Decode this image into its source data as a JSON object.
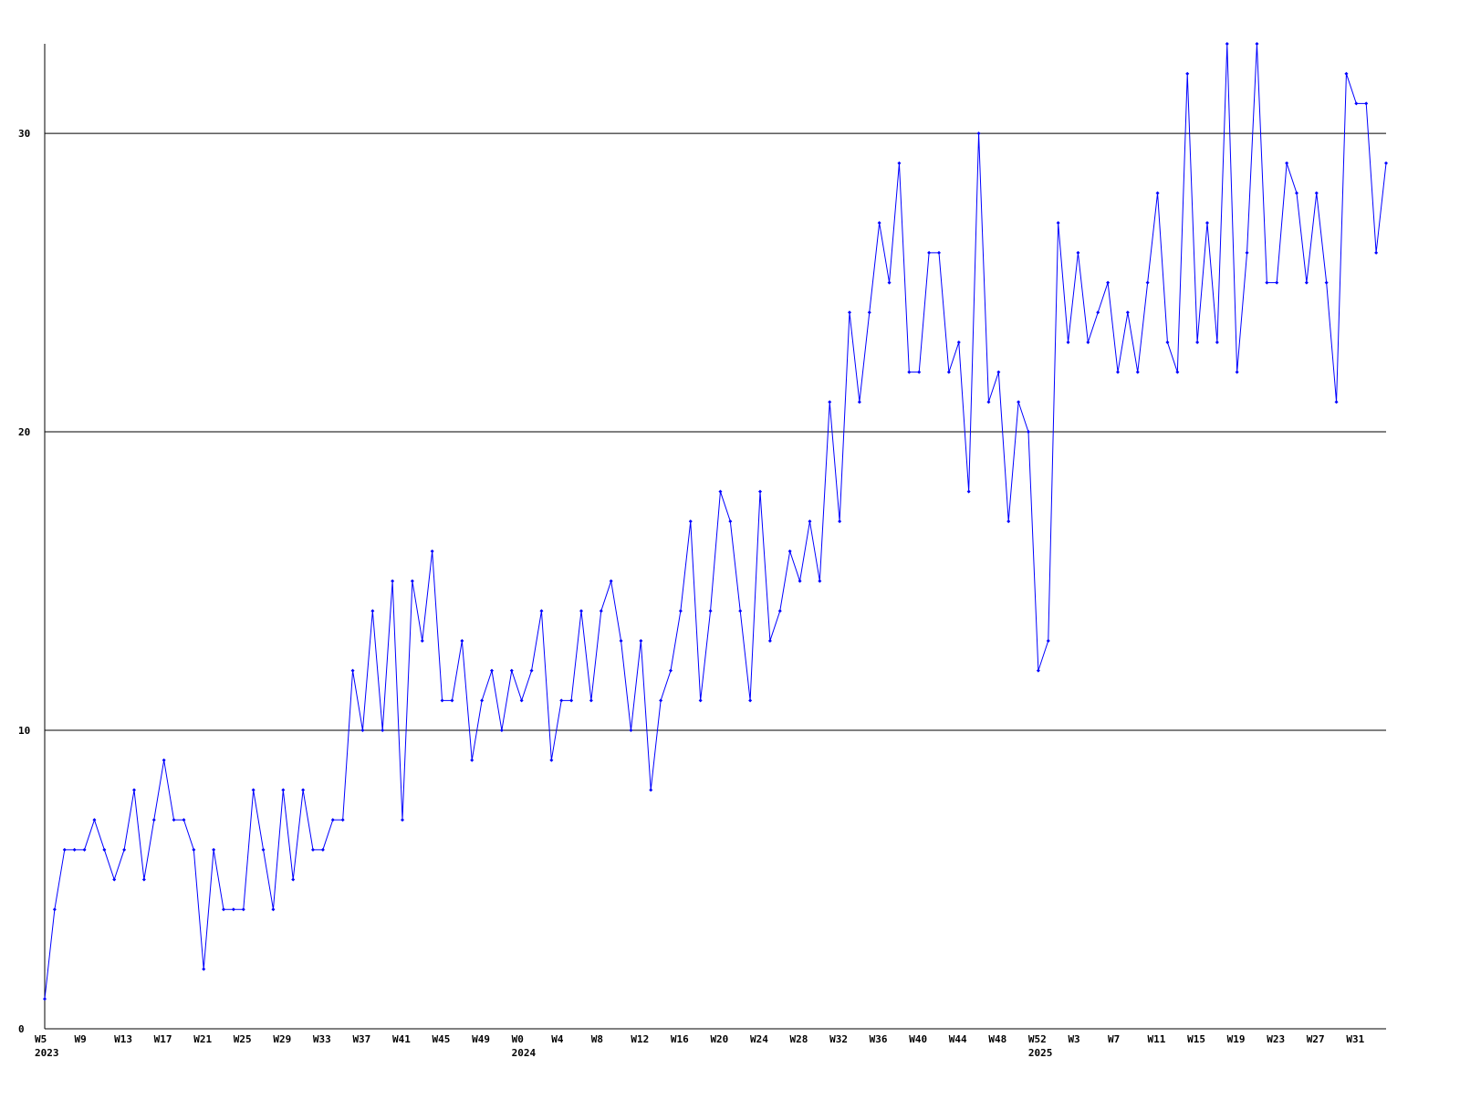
{
  "chart_data": {
    "type": "line",
    "categories": [
      "W5",
      null,
      null,
      null,
      "W9",
      null,
      null,
      null,
      "W13",
      null,
      null,
      null,
      "W17",
      null,
      null,
      null,
      "W21",
      null,
      null,
      null,
      "W25",
      null,
      null,
      null,
      "W29",
      null,
      null,
      null,
      "W33",
      null,
      null,
      null,
      "W37",
      null,
      null,
      null,
      "W41",
      null,
      null,
      null,
      "W45",
      null,
      null,
      null,
      "W49",
      null,
      null,
      null,
      "W0",
      null,
      null,
      null,
      "W4",
      null,
      null,
      null,
      "W8",
      null,
      null,
      null,
      "W12",
      null,
      null,
      null,
      "W16",
      null,
      null,
      null,
      "W20",
      null,
      null,
      null,
      "W24",
      null,
      null,
      null,
      "W28",
      null,
      null,
      null,
      "W32",
      null,
      null,
      null,
      "W36",
      null,
      null,
      null,
      "W40",
      null,
      null,
      null,
      "W44",
      null,
      null,
      null,
      "W48",
      null,
      null,
      null,
      "W52",
      null,
      null,
      null,
      "W3",
      null,
      null,
      null,
      "W7",
      null,
      null,
      null,
      "W11",
      null,
      null,
      null,
      "W15",
      null,
      null,
      null,
      "W19",
      null,
      null,
      null,
      "W23",
      null,
      null,
      null,
      "W27",
      null,
      null,
      null,
      "W31",
      null,
      null,
      null
    ],
    "category_years": [
      "2023",
      null,
      null,
      null,
      null,
      null,
      null,
      null,
      null,
      null,
      null,
      null,
      null,
      null,
      null,
      null,
      null,
      null,
      null,
      null,
      null,
      null,
      null,
      null,
      null,
      null,
      null,
      null,
      null,
      null,
      null,
      null,
      null,
      null,
      null,
      null,
      null,
      null,
      null,
      null,
      null,
      null,
      null,
      null,
      null,
      null,
      null,
      null,
      "2024",
      null,
      null,
      null,
      null,
      null,
      null,
      null,
      null,
      null,
      null,
      null,
      null,
      null,
      null,
      null,
      null,
      null,
      null,
      null,
      null,
      null,
      null,
      null,
      null,
      null,
      null,
      null,
      null,
      null,
      null,
      null,
      null,
      null,
      null,
      null,
      null,
      null,
      null,
      null,
      null,
      null,
      null,
      null,
      null,
      null,
      null,
      null,
      null,
      null,
      null,
      null,
      "2025",
      null,
      null,
      null,
      null,
      null,
      null,
      null,
      null,
      null,
      null,
      null,
      null,
      null,
      null,
      null,
      null,
      null,
      null,
      null,
      null,
      null,
      null,
      null,
      null,
      null,
      null,
      null,
      null,
      null,
      null,
      null,
      null,
      null,
      null,
      null
    ],
    "series": [
      {
        "color": "#0000ff",
        "values": [
          1,
          4,
          6,
          6,
          6,
          7,
          6,
          5,
          6,
          8,
          5,
          7,
          9,
          7,
          7,
          6,
          2,
          6,
          4,
          4,
          4,
          8,
          6,
          4,
          8,
          5,
          8,
          6,
          6,
          7,
          7,
          12,
          10,
          14,
          10,
          15,
          7,
          15,
          13,
          16,
          11,
          11,
          13,
          9,
          11,
          12,
          10,
          12,
          11,
          12,
          14,
          9,
          11,
          11,
          14,
          11,
          14,
          15,
          13,
          10,
          13,
          8,
          11,
          12,
          14,
          17,
          11,
          14,
          18,
          17,
          14,
          11,
          18,
          13,
          14,
          16,
          15,
          17,
          15,
          21,
          17,
          24,
          21,
          24,
          27,
          25,
          29,
          22,
          22,
          26,
          26,
          22,
          23,
          18,
          30,
          21,
          22,
          17,
          21,
          20,
          12,
          13,
          27,
          23,
          26,
          23,
          24,
          25,
          22,
          24,
          22,
          25,
          28,
          23,
          22,
          32,
          23,
          27,
          23,
          33,
          22,
          26,
          33,
          25,
          25,
          29,
          28,
          25,
          28,
          25,
          21,
          32,
          31,
          31,
          26,
          29
        ]
      }
    ],
    "ylim": [
      0,
      33
    ],
    "yticks": [
      0,
      10,
      20,
      30
    ],
    "grid": true
  }
}
